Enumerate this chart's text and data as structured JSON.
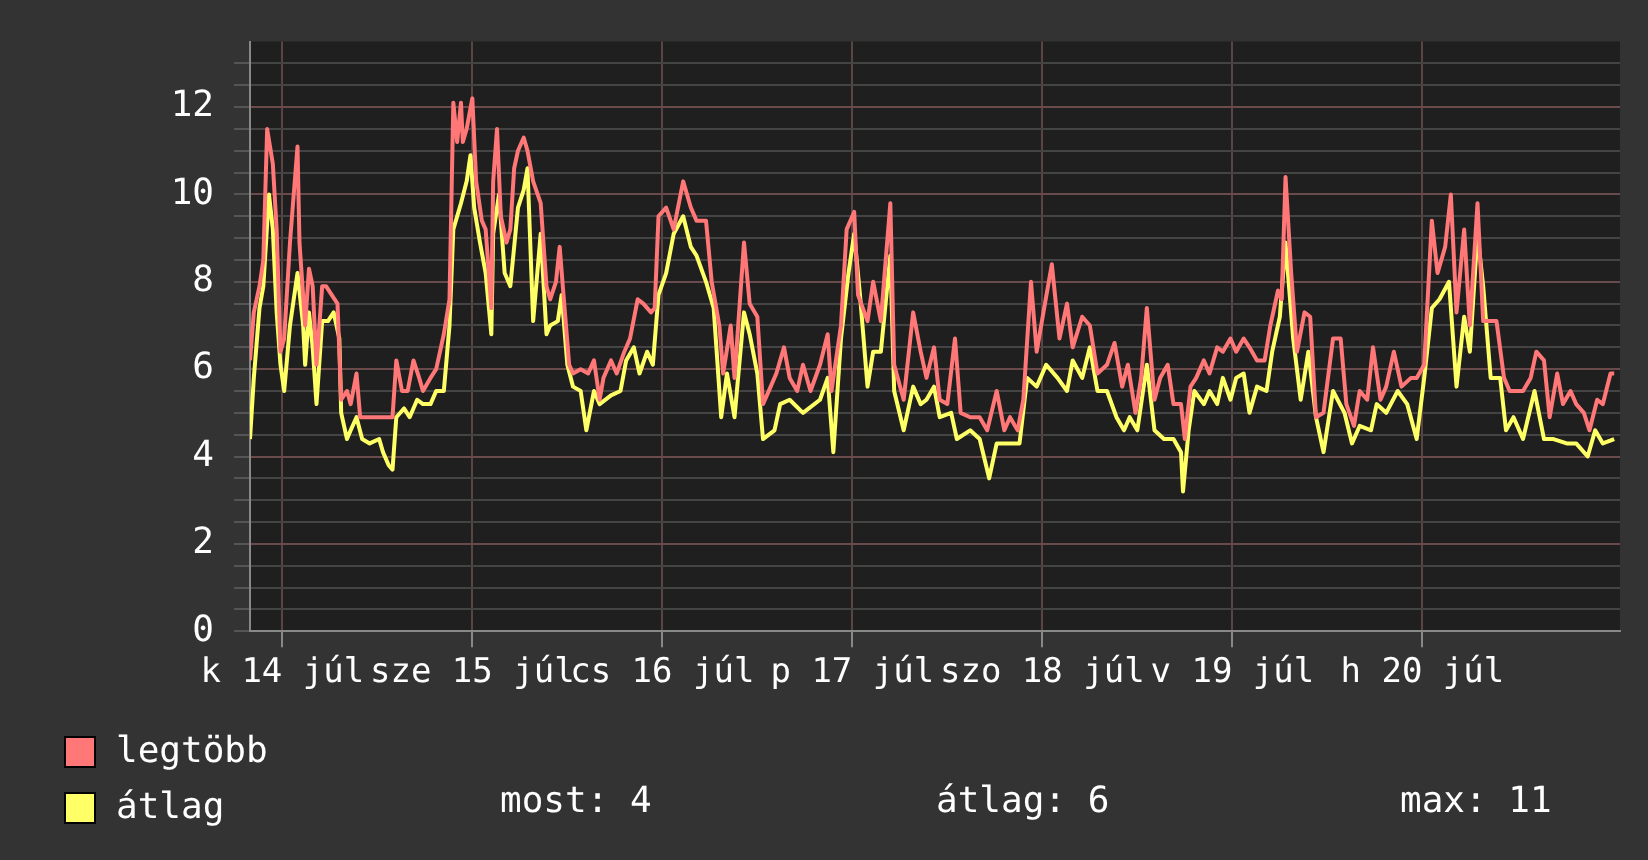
{
  "chart_data": {
    "type": "line",
    "xlim": [
      "--07-14T07:55",
      "--07-21T12:58"
    ],
    "xticks": [
      {
        "value": "--07-14T12:00",
        "label": "k 14 júl"
      },
      {
        "value": "--07-15T12:00",
        "label": "sze 15 júl"
      },
      {
        "value": "--07-16T12:00",
        "label": "cs 16 júl"
      },
      {
        "value": "--07-17T12:00",
        "label": "p 17 júl"
      },
      {
        "value": "--07-18T12:00",
        "label": "szo 18 júl"
      },
      {
        "value": "--07-19T12:00",
        "label": "v 19 júl"
      },
      {
        "value": "--07-20T12:00",
        "label": "h 20 júl"
      }
    ],
    "ylim": [
      0,
      13.5
    ],
    "yticks": [
      0,
      {
        "value": 0.5,
        "label": null
      },
      {
        "value": 1,
        "label": null
      },
      {
        "value": 1.5,
        "label": null
      },
      2,
      {
        "value": 2.5,
        "label": null
      },
      {
        "value": 3,
        "label": null
      },
      {
        "value": 3.5,
        "label": null
      },
      4,
      {
        "value": 4.5,
        "label": null
      },
      {
        "value": 5,
        "label": null
      },
      {
        "value": 5.5,
        "label": null
      },
      6,
      {
        "value": 6.5,
        "label": null
      },
      {
        "value": 7,
        "label": null
      },
      {
        "value": 7.5,
        "label": null
      },
      8,
      {
        "value": 8.5,
        "label": null
      },
      {
        "value": 9,
        "label": null
      },
      {
        "value": 9.5,
        "label": null
      },
      10,
      {
        "value": 10.5,
        "label": null
      },
      {
        "value": 11,
        "label": null
      },
      {
        "value": 11.5,
        "label": null
      },
      12,
      {
        "value": 12.5,
        "label": null
      },
      {
        "value": 13,
        "label": null
      }
    ],
    "grid": true,
    "legend": "bottom left",
    "marker": "none",
    "line_style": "solid",
    "annotations": [
      "most: 4",
      "átlag: 6",
      "max: 11"
    ],
    "series": [
      {
        "name": "legtöbb",
        "color": "#ff7777",
        "x": [
          "--07-14T07:55",
          "--07-14T08:24",
          "--07-14T09:07",
          "--07-14T09:36",
          "--07-14T10:05",
          "--07-14T10:48",
          "--07-14T11:17",
          "--07-14T11:46",
          "--07-14T12:14",
          "--07-14T12:58",
          "--07-14T13:55",
          "--07-14T14:10",
          "--07-14T14:53",
          "--07-14T15:22",
          "--07-14T15:50",
          "--07-14T16:19",
          "--07-14T17:02",
          "--07-14T17:31",
          "--07-14T18:14",
          "--07-14T18:58",
          "--07-14T19:26",
          "--07-14T20:10",
          "--07-14T20:38",
          "--07-14T21:22",
          "--07-14T21:50",
          "--07-14T22:48",
          "--07-15T00:29",
          "--07-15T01:55",
          "--07-15T02:24",
          "--07-15T03:07",
          "--07-15T03:50",
          "--07-15T04:34",
          "--07-15T05:17",
          "--07-15T05:46",
          "--07-15T06:43",
          "--07-15T07:26",
          "--07-15T08:24",
          "--07-15T09:07",
          "--07-15T09:36",
          "--07-15T10:05",
          "--07-15T10:34",
          "--07-15T10:48",
          "--07-15T11:17",
          "--07-15T12:00",
          "--07-15T12:29",
          "--07-15T13:12",
          "--07-15T13:41",
          "--07-15T14:24",
          "--07-15T14:38",
          "--07-15T15:07",
          "--07-15T15:36",
          "--07-15T16:19",
          "--07-15T16:48",
          "--07-15T17:17",
          "--07-15T17:46",
          "--07-15T18:29",
          "--07-15T18:58",
          "--07-15T19:41",
          "--07-15T20:38",
          "--07-15T21:22",
          "--07-15T21:50",
          "--07-15T22:34",
          "--07-15T23:02",
          "--07-15T23:31",
          "--07-16T00:14",
          "--07-16T00:43",
          "--07-16T01:41",
          "--07-16T02:38",
          "--07-16T03:22",
          "--07-16T04:05",
          "--07-16T04:34",
          "--07-16T05:31",
          "--07-16T06:14",
          "--07-16T07:12",
          "--07-16T07:55",
          "--07-16T08:53",
          "--07-16T09:36",
          "--07-16T10:34",
          "--07-16T11:02",
          "--07-16T11:31",
          "--07-16T12:29",
          "--07-16T13:26",
          "--07-16T14:38",
          "--07-16T15:36",
          "--07-16T16:19",
          "--07-16T17:31",
          "--07-16T18:14",
          "--07-16T19:12",
          "--07-16T19:41",
          "--07-16T20:38",
          "--07-16T21:07",
          "--07-16T22:19",
          "--07-16T23:02",
          "--07-17T00:00",
          "--07-17T00:43",
          "--07-17T01:41",
          "--07-17T02:24",
          "--07-17T03:22",
          "--07-17T04:05",
          "--07-17T05:02",
          "--07-17T05:46",
          "--07-17T06:43",
          "--07-17T07:55",
          "--07-17T08:53",
          "--07-17T09:22",
          "--07-17T10:34",
          "--07-17T11:17",
          "--07-17T12:14",
          "--07-17T12:43",
          "--07-17T13:55",
          "--07-17T14:38",
          "--07-17T15:36",
          "--07-17T16:05",
          "--07-17T16:48",
          "--07-17T17:17",
          "--07-17T18:29",
          "--07-17T19:41",
          "--07-17T20:38",
          "--07-17T21:22",
          "--07-17T22:19",
          "--07-17T23:02",
          "--07-18T00:00",
          "--07-18T00:58",
          "--07-18T01:41",
          "--07-18T02:53",
          "--07-18T04:05",
          "--07-18T05:02",
          "--07-18T06:14",
          "--07-18T07:12",
          "--07-18T07:55",
          "--07-18T08:53",
          "--07-18T09:36",
          "--07-18T10:34",
          "--07-18T11:17",
          "--07-18T12:14",
          "--07-18T13:12",
          "--07-18T14:10",
          "--07-18T15:07",
          "--07-18T15:50",
          "--07-18T17:02",
          "--07-18T18:00",
          "--07-18T18:58",
          "--07-18T20:10",
          "--07-18T21:07",
          "--07-18T22:05",
          "--07-18T22:48",
          "--07-18T23:46",
          "--07-19T00:29",
          "--07-19T01:12",
          "--07-19T02:10",
          "--07-19T02:53",
          "--07-19T03:50",
          "--07-19T04:34",
          "--07-19T05:31",
          "--07-19T06:00",
          "--07-19T06:43",
          "--07-19T07:26",
          "--07-19T08:24",
          "--07-19T09:07",
          "--07-19T10:05",
          "--07-19T10:48",
          "--07-19T11:46",
          "--07-19T12:29",
          "--07-19T13:26",
          "--07-19T14:10",
          "--07-19T15:07",
          "--07-19T16:05",
          "--07-19T16:48",
          "--07-19T17:46",
          "--07-19T18:14",
          "--07-19T18:43",
          "--07-19T19:26",
          "--07-19T20:10",
          "--07-19T21:07",
          "--07-19T21:50",
          "--07-19T22:34",
          "--07-19T23:31",
          "--07-20T00:43",
          "--07-20T01:41",
          "--07-20T02:24",
          "--07-20T03:22",
          "--07-20T04:05",
          "--07-20T05:02",
          "--07-20T05:46",
          "--07-20T06:43",
          "--07-20T07:26",
          "--07-20T08:24",
          "--07-20T09:22",
          "--07-20T10:34",
          "--07-20T11:17",
          "--07-20T12:14",
          "--07-20T13:12",
          "--07-20T13:55",
          "--07-20T14:53",
          "--07-20T15:36",
          "--07-20T16:19",
          "--07-20T17:17",
          "--07-20T18:00",
          "--07-20T18:58",
          "--07-20T19:41",
          "--07-20T20:38",
          "--07-20T21:22",
          "--07-20T22:19",
          "--07-20T23:02",
          "--07-21T00:00",
          "--07-21T00:43",
          "--07-21T01:41",
          "--07-21T02:24",
          "--07-21T03:22",
          "--07-21T04:05",
          "--07-21T05:02",
          "--07-21T05:46",
          "--07-21T06:43",
          "--07-21T07:26",
          "--07-21T08:24",
          "--07-21T09:07",
          "--07-21T10:05",
          "--07-21T10:48",
          "--07-21T11:46",
          "--07-21T12:14"
        ],
        "values": [
          6.2,
          7.3,
          7.9,
          8.5,
          11.5,
          10.7,
          9.2,
          6.4,
          6.7,
          8.9,
          11.1,
          8.9,
          7.0,
          8.3,
          7.9,
          6.1,
          7.9,
          7.9,
          7.7,
          7.5,
          5.3,
          5.5,
          5.2,
          5.9,
          4.9,
          4.9,
          4.9,
          4.9,
          6.2,
          5.5,
          5.5,
          6.2,
          5.8,
          5.5,
          5.8,
          6.0,
          6.8,
          7.6,
          12.1,
          11.2,
          12.1,
          11.2,
          11.5,
          12.2,
          10.3,
          9.4,
          9.2,
          7.4,
          10.3,
          11.5,
          9.5,
          8.9,
          9.2,
          10.6,
          11.0,
          11.3,
          11.0,
          10.3,
          9.8,
          7.9,
          7.6,
          8.0,
          8.8,
          7.7,
          6.1,
          5.9,
          6.0,
          5.9,
          6.2,
          5.3,
          5.8,
          6.2,
          5.9,
          6.4,
          6.7,
          7.6,
          7.5,
          7.3,
          7.4,
          9.5,
          9.7,
          9.2,
          10.3,
          9.7,
          9.4,
          9.4,
          8.0,
          7.0,
          5.9,
          7.0,
          5.8,
          8.9,
          7.5,
          7.2,
          5.2,
          5.6,
          5.9,
          6.5,
          5.8,
          5.5,
          6.1,
          5.5,
          6.1,
          6.8,
          5.5,
          7.0,
          9.2,
          9.6,
          7.7,
          7.1,
          8.0,
          7.1,
          8.2,
          9.8,
          6.1,
          5.3,
          7.3,
          6.4,
          5.8,
          6.5,
          5.3,
          5.2,
          6.7,
          5.0,
          4.9,
          4.9,
          4.6,
          5.5,
          4.6,
          4.9,
          4.6,
          5.3,
          8.0,
          6.4,
          7.4,
          8.4,
          6.7,
          7.5,
          6.5,
          7.2,
          7.0,
          5.9,
          6.1,
          6.6,
          5.6,
          6.1,
          5.0,
          5.8,
          7.4,
          5.3,
          5.8,
          6.1,
          5.2,
          5.2,
          4.4,
          5.6,
          5.8,
          6.2,
          5.9,
          6.5,
          6.4,
          6.7,
          6.4,
          6.7,
          6.5,
          6.2,
          6.2,
          7.0,
          7.8,
          7.6,
          10.4,
          8.2,
          6.4,
          7.3,
          7.2,
          4.9,
          5.0,
          6.7,
          6.7,
          5.2,
          4.7,
          5.5,
          5.3,
          6.5,
          5.3,
          5.6,
          6.4,
          5.6,
          5.8,
          5.8,
          6.1,
          9.4,
          8.2,
          8.8,
          10.0,
          7.3,
          9.2,
          7.0,
          9.8,
          7.1,
          7.1,
          7.1,
          5.8,
          5.5,
          5.5,
          5.5,
          5.8,
          6.4,
          6.2,
          4.9,
          5.9,
          5.2,
          5.5,
          5.2,
          5.0,
          4.6,
          5.3,
          5.2,
          5.9,
          5.9
        ]
      },
      {
        "name": "átlag",
        "color": "#ffff66",
        "x": [
          "--07-14T07:55",
          "--07-14T08:24",
          "--07-14T09:07",
          "--07-14T09:36",
          "--07-14T10:19",
          "--07-14T10:48",
          "--07-14T11:17",
          "--07-14T11:46",
          "--07-14T12:14",
          "--07-14T12:58",
          "--07-14T13:55",
          "--07-14T14:38",
          "--07-14T14:53",
          "--07-14T15:22",
          "--07-14T15:50",
          "--07-14T16:19",
          "--07-14T17:02",
          "--07-14T17:46",
          "--07-14T18:29",
          "--07-14T19:12",
          "--07-14T19:26",
          "--07-14T20:10",
          "--07-14T20:38",
          "--07-14T21:22",
          "--07-14T22:05",
          "--07-14T23:02",
          "--07-15T00:14",
          "--07-15T00:43",
          "--07-15T01:26",
          "--07-15T01:55",
          "--07-15T02:24",
          "--07-15T03:22",
          "--07-15T04:05",
          "--07-15T05:02",
          "--07-15T05:46",
          "--07-15T06:43",
          "--07-15T07:26",
          "--07-15T08:24",
          "--07-15T09:07",
          "--07-15T09:36",
          "--07-15T10:34",
          "--07-15T11:17",
          "--07-15T11:46",
          "--07-15T12:14",
          "--07-15T12:58",
          "--07-15T13:41",
          "--07-15T14:24",
          "--07-15T14:38",
          "--07-15T15:22",
          "--07-15T16:05",
          "--07-15T16:48",
          "--07-15T17:46",
          "--07-15T18:29",
          "--07-15T18:58",
          "--07-15T19:41",
          "--07-15T20:38",
          "--07-15T21:22",
          "--07-15T21:50",
          "--07-15T22:48",
          "--07-15T23:17",
          "--07-16T00:00",
          "--07-16T00:43",
          "--07-16T01:41",
          "--07-16T02:24",
          "--07-16T03:22",
          "--07-16T04:05",
          "--07-16T05:31",
          "--07-16T06:43",
          "--07-16T07:26",
          "--07-16T08:24",
          "--07-16T09:07",
          "--07-16T10:05",
          "--07-16T10:48",
          "--07-16T11:31",
          "--07-16T12:29",
          "--07-16T13:26",
          "--07-16T14:38",
          "--07-16T15:36",
          "--07-16T16:19",
          "--07-16T17:31",
          "--07-16T18:29",
          "--07-16T19:26",
          "--07-16T20:10",
          "--07-16T21:07",
          "--07-16T22:19",
          "--07-16T23:02",
          "--07-17T00:00",
          "--07-17T00:43",
          "--07-17T02:10",
          "--07-17T02:53",
          "--07-17T04:05",
          "--07-17T05:46",
          "--07-17T07:55",
          "--07-17T08:53",
          "--07-17T09:36",
          "--07-17T10:34",
          "--07-17T11:31",
          "--07-17T12:14",
          "--07-17T12:58",
          "--07-17T13:55",
          "--07-17T14:38",
          "--07-17T15:36",
          "--07-17T16:48",
          "--07-17T17:17",
          "--07-17T18:29",
          "--07-17T19:41",
          "--07-17T20:38",
          "--07-17T21:22",
          "--07-17T22:19",
          "--07-17T23:02",
          "--07-18T00:29",
          "--07-18T01:12",
          "--07-18T02:53",
          "--07-18T04:05",
          "--07-18T05:17",
          "--07-18T06:14",
          "--07-18T07:26",
          "--07-18T09:07",
          "--07-18T10:05",
          "--07-18T11:17",
          "--07-18T12:29",
          "--07-18T13:55",
          "--07-18T15:07",
          "--07-18T15:50",
          "--07-18T17:02",
          "--07-18T18:00",
          "--07-18T18:58",
          "--07-18T20:10",
          "--07-18T21:22",
          "--07-18T22:19",
          "--07-18T23:02",
          "--07-19T00:00",
          "--07-19T01:12",
          "--07-19T02:10",
          "--07-19T03:22",
          "--07-19T04:34",
          "--07-19T05:31",
          "--07-19T05:46",
          "--07-19T06:29",
          "--07-19T07:12",
          "--07-19T08:24",
          "--07-19T09:07",
          "--07-19T10:05",
          "--07-19T10:48",
          "--07-19T11:46",
          "--07-19T12:29",
          "--07-19T13:26",
          "--07-19T14:10",
          "--07-19T15:07",
          "--07-19T16:19",
          "--07-19T17:02",
          "--07-19T18:00",
          "--07-19T18:43",
          "--07-19T19:41",
          "--07-19T20:38",
          "--07-19T21:36",
          "--07-19T22:34",
          "--07-19T23:31",
          "--07-20T00:43",
          "--07-20T02:10",
          "--07-20T03:07",
          "--07-20T04:05",
          "--07-20T05:31",
          "--07-20T06:14",
          "--07-20T07:26",
          "--07-20T08:53",
          "--07-20T10:05",
          "--07-20T11:17",
          "--07-20T12:14",
          "--07-20T13:12",
          "--07-20T14:10",
          "--07-20T15:22",
          "--07-20T16:19",
          "--07-20T17:17",
          "--07-20T18:00",
          "--07-20T18:58",
          "--07-20T19:41",
          "--07-20T20:38",
          "--07-20T21:50",
          "--07-20T22:34",
          "--07-20T23:31",
          "--07-21T00:43",
          "--07-21T02:10",
          "--07-21T03:22",
          "--07-21T04:34",
          "--07-21T06:14",
          "--07-21T07:26",
          "--07-21T08:53",
          "--07-21T09:50",
          "--07-21T10:48",
          "--07-21T12:14"
        ],
        "values": [
          4.4,
          5.8,
          7.4,
          7.9,
          10.0,
          9.2,
          7.3,
          6.1,
          5.5,
          7.0,
          8.2,
          7.0,
          6.1,
          7.3,
          6.5,
          5.2,
          7.1,
          7.1,
          7.3,
          6.7,
          5.0,
          4.4,
          4.6,
          4.9,
          4.4,
          4.3,
          4.4,
          4.1,
          3.8,
          3.7,
          4.9,
          5.1,
          4.9,
          5.3,
          5.2,
          5.2,
          5.5,
          5.5,
          7.0,
          9.2,
          9.8,
          10.3,
          10.9,
          9.7,
          8.9,
          8.2,
          6.8,
          9.1,
          10.0,
          8.2,
          7.9,
          9.7,
          10.1,
          10.6,
          7.1,
          9.1,
          6.8,
          7.0,
          7.1,
          7.7,
          6.1,
          5.6,
          5.5,
          4.6,
          5.5,
          5.2,
          5.4,
          5.5,
          6.2,
          6.5,
          5.9,
          6.4,
          6.1,
          7.7,
          8.2,
          9.1,
          9.5,
          8.8,
          8.6,
          8.0,
          7.4,
          4.9,
          5.9,
          4.9,
          7.3,
          6.8,
          5.9,
          4.4,
          4.6,
          5.2,
          5.3,
          5.0,
          5.3,
          5.8,
          4.1,
          6.7,
          8.2,
          9.1,
          7.7,
          5.6,
          6.4,
          6.4,
          8.6,
          5.5,
          4.6,
          5.6,
          5.2,
          5.3,
          5.6,
          4.9,
          5.0,
          4.4,
          4.6,
          4.4,
          3.5,
          4.3,
          4.3,
          4.3,
          5.8,
          5.6,
          6.1,
          5.8,
          5.5,
          6.2,
          5.8,
          6.5,
          5.5,
          5.5,
          4.9,
          4.6,
          4.9,
          4.6,
          6.1,
          4.6,
          4.4,
          4.4,
          4.1,
          3.2,
          4.6,
          5.5,
          5.2,
          5.5,
          5.2,
          5.8,
          5.3,
          5.8,
          5.9,
          5.0,
          5.6,
          5.5,
          6.4,
          7.2,
          8.9,
          6.7,
          5.3,
          6.4,
          4.9,
          4.1,
          5.5,
          5.0,
          4.3,
          4.7,
          4.6,
          5.2,
          5.0,
          5.5,
          5.2,
          4.4,
          5.8,
          7.4,
          7.6,
          8.0,
          5.6,
          7.2,
          6.4,
          9.1,
          7.9,
          5.8,
          5.8,
          4.6,
          4.9,
          4.4,
          5.5,
          4.4,
          4.4,
          4.3,
          4.3,
          4.0,
          4.6,
          4.3,
          4.4
        ]
      }
    ]
  }
}
